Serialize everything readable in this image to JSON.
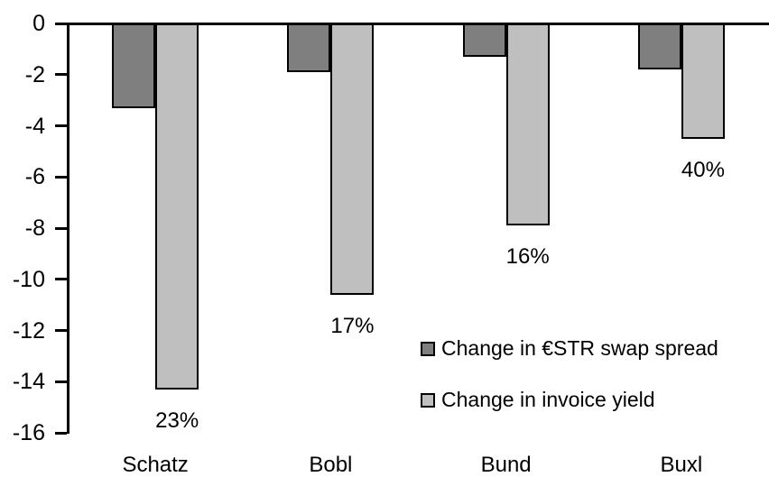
{
  "chart_data": {
    "type": "bar",
    "title": "",
    "xlabel": "",
    "ylabel": "",
    "categories": [
      "Schatz",
      "Bobl",
      "Bund",
      "Buxl"
    ],
    "series": [
      {
        "name": "Change in €STR swap spread",
        "color": "#7f7f7f",
        "values": [
          -3.3,
          -1.9,
          -1.3,
          -1.8
        ]
      },
      {
        "name": "Change in invoice yield",
        "color": "#bfbfbf",
        "values": [
          -14.3,
          -10.6,
          -7.9,
          -4.5
        ],
        "data_labels": [
          "23%",
          "17%",
          "16%",
          "40%"
        ]
      }
    ],
    "ylim": [
      -16,
      0
    ],
    "yticks": [
      0,
      -2,
      -4,
      -6,
      -8,
      -10,
      -12,
      -14,
      -16
    ],
    "grid": false,
    "legend_position": "inside-right-middle",
    "axis_color": "#000000",
    "bar_border_color": "#000000",
    "text_color": "#000000",
    "background": "#ffffff"
  }
}
